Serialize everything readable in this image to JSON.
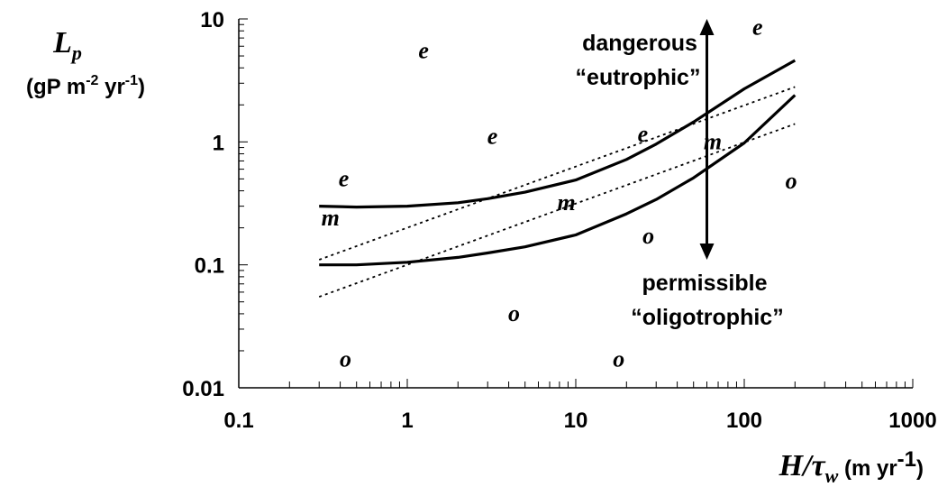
{
  "chart_data": {
    "type": "line",
    "x_scale": "log",
    "y_scale": "log",
    "xlim": [
      0.1,
      1000
    ],
    "ylim": [
      0.01,
      10
    ],
    "x_ticks": [
      "0.1",
      "1",
      "10",
      "100",
      "1000"
    ],
    "y_ticks": [
      "0.01",
      "0.1",
      "1",
      "10"
    ],
    "ylabel": {
      "main": "L",
      "sub": "p",
      "unit_pre": "(gP m",
      "unit_sup1": "-2",
      "unit_mid": " yr",
      "unit_sup2": "-1",
      "unit_post": ")"
    },
    "xlabel": {
      "main": "H/τ",
      "sub": "w",
      "unit_pre": " (m yr",
      "unit_sup": "-1",
      "unit_post": ")"
    },
    "series": [
      {
        "style": "solid",
        "x": [
          0.3,
          0.5,
          1,
          2,
          3,
          5,
          10,
          20,
          30,
          50,
          100,
          200
        ],
        "y": [
          0.3,
          0.295,
          0.3,
          0.32,
          0.345,
          0.39,
          0.49,
          0.72,
          0.96,
          1.45,
          2.7,
          4.6
        ]
      },
      {
        "style": "solid",
        "x": [
          0.3,
          0.5,
          1,
          2,
          3,
          5,
          10,
          20,
          30,
          50,
          100,
          200
        ],
        "y": [
          0.1,
          0.1,
          0.105,
          0.115,
          0.125,
          0.14,
          0.175,
          0.26,
          0.34,
          0.51,
          0.98,
          2.4
        ]
      },
      {
        "style": "dotted",
        "x": [
          0.3,
          200
        ],
        "y": [
          0.11,
          2.8
        ]
      },
      {
        "style": "dotted",
        "x": [
          0.3,
          200
        ],
        "y": [
          0.055,
          1.4
        ]
      }
    ],
    "points": [
      {
        "label": "e",
        "x": 1.25,
        "y": 5.5
      },
      {
        "label": "e",
        "x": 0.42,
        "y": 0.5
      },
      {
        "label": "e",
        "x": 3.2,
        "y": 1.1
      },
      {
        "label": "e",
        "x": 25,
        "y": 1.15
      },
      {
        "label": "e",
        "x": 120,
        "y": 8.5
      },
      {
        "label": "m",
        "x": 0.35,
        "y": 0.24
      },
      {
        "label": "m",
        "x": 8.8,
        "y": 0.32
      },
      {
        "label": "m",
        "x": 65,
        "y": 1.0
      },
      {
        "label": "o",
        "x": 27,
        "y": 0.17
      },
      {
        "label": "o",
        "x": 190,
        "y": 0.48
      },
      {
        "label": "o",
        "x": 4.3,
        "y": 0.04
      },
      {
        "label": "o",
        "x": 0.43,
        "y": 0.017
      },
      {
        "label": "o",
        "x": 18,
        "y": 0.017
      }
    ],
    "arrow": {
      "x": 60,
      "y_top": 10,
      "y_bottom": 0.11
    },
    "annotations": {
      "upper_line1": "dangerous",
      "upper_line2": "“eutrophic”",
      "lower_line1": "permissible",
      "lower_line2": "“oligotrophic”"
    }
  }
}
